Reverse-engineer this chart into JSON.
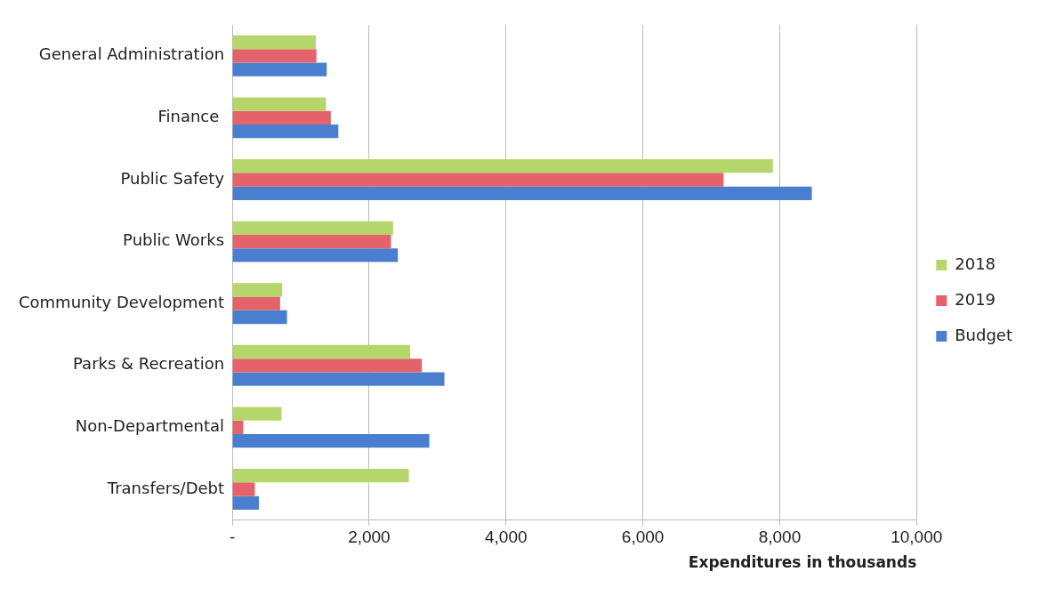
{
  "chart_data": {
    "type": "bar",
    "orientation": "horizontal",
    "xlabel": "Expenditures in thousands",
    "categories": [
      "General Administration",
      "Finance ",
      "Public Safety",
      "Public Works",
      "Community Development",
      "Parks & Recreation",
      "Non-Departmental",
      "Transfers/Debt"
    ],
    "series": [
      {
        "name": "2018",
        "color": "#b5d66a",
        "values": [
          1220,
          1370,
          7900,
          2350,
          730,
          2600,
          720,
          2580
        ]
      },
      {
        "name": "2019",
        "color": "#e4636a",
        "values": [
          1230,
          1440,
          7180,
          2320,
          700,
          2770,
          160,
          330
        ]
      },
      {
        "name": "Budget",
        "color": "#4a7fd0",
        "values": [
          1380,
          1550,
          8470,
          2420,
          800,
          3100,
          2880,
          390
        ]
      }
    ],
    "xlim": [
      0,
      10000
    ],
    "xticks": [
      {
        "value": 0,
        "label": "-"
      },
      {
        "value": 2000,
        "label": "2,000"
      },
      {
        "value": 4000,
        "label": "4,000"
      },
      {
        "value": 6000,
        "label": "6,000"
      },
      {
        "value": 8000,
        "label": "8,000"
      },
      {
        "value": 10000,
        "label": "10,000"
      }
    ],
    "grid": "x",
    "legend": "right"
  }
}
